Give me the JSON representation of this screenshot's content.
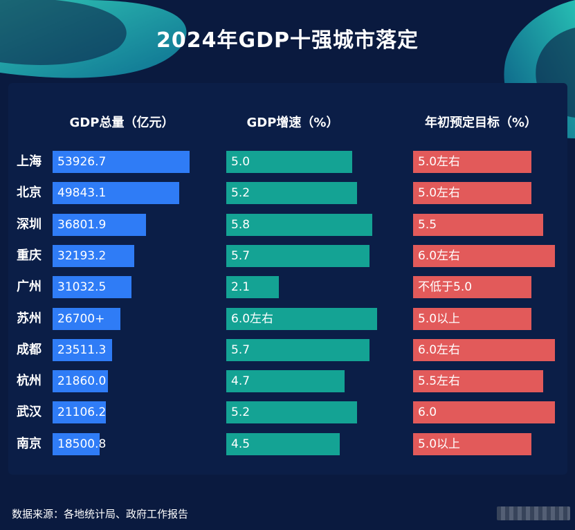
{
  "title": "2024年GDP十强城市落定",
  "colors": {
    "background": "#0a1a3f",
    "panel": "#0b1e47",
    "gdp_bar": "#2f7cf6",
    "growth_bar": "#14a394",
    "target_bar": "#e25a5a",
    "accent_teal": "#1fc9b8"
  },
  "chart_data": {
    "type": "bar",
    "orientation": "horizontal",
    "categories": [
      "上海",
      "北京",
      "深圳",
      "重庆",
      "广州",
      "苏州",
      "成都",
      "杭州",
      "武汉",
      "南京"
    ],
    "series": [
      {
        "name": "GDP总量（亿元）",
        "values": [
          53926.7,
          49843.1,
          36801.9,
          32193.2,
          31032.5,
          26700,
          23511.3,
          21860.0,
          21106.2,
          18500.8
        ],
        "labels": [
          "53926.7",
          "49843.1",
          "36801.9",
          "32193.2",
          "31032.5",
          "26700+",
          "23511.3",
          "21860.0",
          "21106.2",
          "18500.8"
        ]
      },
      {
        "name": "GDP增速（%）",
        "values": [
          5.0,
          5.2,
          5.8,
          5.7,
          2.1,
          6.0,
          5.7,
          4.7,
          5.2,
          4.5
        ],
        "labels": [
          "5.0",
          "5.2",
          "5.8",
          "5.7",
          "2.1",
          "6.0左右",
          "5.7",
          "4.7",
          "5.2",
          "4.5"
        ]
      },
      {
        "name": "年初预定目标（%）",
        "values": [
          5.0,
          5.0,
          5.5,
          6.0,
          5.0,
          5.0,
          6.0,
          5.5,
          6.0,
          5.0
        ],
        "labels": [
          "5.0左右",
          "5.0左右",
          "5.5",
          "6.0左右",
          "不低于5.0",
          "5.0以上",
          "6.0左右",
          "5.5左右",
          "6.0",
          "5.0以上"
        ]
      }
    ]
  },
  "footer": "数据来源：各地统计局、政府工作报告"
}
